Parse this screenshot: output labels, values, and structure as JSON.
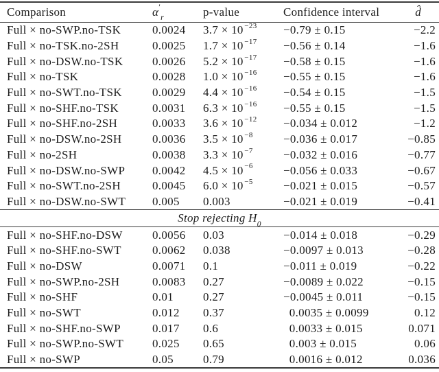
{
  "table": {
    "header": {
      "comparison": "Comparison",
      "alpha_base": "α",
      "alpha_prime": "′",
      "alpha_sub": "r",
      "p_value": "p-value",
      "confidence_interval": "Confidence interval",
      "d_hat": "d̂"
    },
    "section_divider": {
      "text": "Stop rejecting H",
      "sub": "0"
    },
    "rows_rejecting": [
      {
        "comparison": "Full × no-SWP.no-TSK",
        "alpha": "0.0024",
        "p": "3.7 × 10",
        "p_exp": "−23",
        "ci": "−0.79 ± 0.15",
        "d": "−2.2"
      },
      {
        "comparison": "Full × no-TSK.no-2SH",
        "alpha": "0.0025",
        "p": "1.7 × 10",
        "p_exp": "−17",
        "ci": "−0.56 ± 0.14",
        "d": "−1.6"
      },
      {
        "comparison": "Full × no-DSW.no-TSK",
        "alpha": "0.0026",
        "p": "5.2 × 10",
        "p_exp": "−17",
        "ci": "−0.58 ± 0.15",
        "d": "−1.6"
      },
      {
        "comparison": "Full × no-TSK",
        "alpha": "0.0028",
        "p": "1.0 × 10",
        "p_exp": "−16",
        "ci": "−0.55 ± 0.15",
        "d": "−1.6"
      },
      {
        "comparison": "Full × no-SWT.no-TSK",
        "alpha": "0.0029",
        "p": "4.4 × 10",
        "p_exp": "−16",
        "ci": "−0.54 ± 0.15",
        "d": "−1.5"
      },
      {
        "comparison": "Full × no-SHF.no-TSK",
        "alpha": "0.0031",
        "p": "6.3 × 10",
        "p_exp": "−16",
        "ci": "−0.55 ± 0.15",
        "d": "−1.5"
      },
      {
        "comparison": "Full × no-SHF.no-2SH",
        "alpha": "0.0033",
        "p": "3.6 × 10",
        "p_exp": "−12",
        "ci": "−0.034 ± 0.012",
        "d": "−1.2"
      },
      {
        "comparison": "Full × no-DSW.no-2SH",
        "alpha": "0.0036",
        "p": "3.5 × 10",
        "p_exp": "−8",
        "ci": "−0.036 ± 0.017",
        "d": "−0.85"
      },
      {
        "comparison": "Full × no-2SH",
        "alpha": "0.0038",
        "p": "3.3 × 10",
        "p_exp": "−7",
        "ci": "−0.032 ± 0.016",
        "d": "−0.77"
      },
      {
        "comparison": "Full × no-DSW.no-SWP",
        "alpha": "0.0042",
        "p": "4.5 × 10",
        "p_exp": "−6",
        "ci": "−0.056 ± 0.033",
        "d": "−0.67"
      },
      {
        "comparison": "Full × no-SWT.no-2SH",
        "alpha": "0.0045",
        "p": "6.0 × 10",
        "p_exp": "−5",
        "ci": "−0.021 ± 0.015",
        "d": "−0.57"
      },
      {
        "comparison": "Full × no-DSW.no-SWT",
        "alpha": "0.005",
        "p": "0.003",
        "p_exp": "",
        "ci": "−0.021 ± 0.019",
        "d": "−0.41"
      }
    ],
    "rows_stop_rejecting": [
      {
        "comparison": "Full × no-SHF.no-DSW",
        "alpha": "0.0056",
        "p": "0.03",
        "p_exp": "",
        "ci": "−0.014 ± 0.018",
        "d": "−0.29"
      },
      {
        "comparison": "Full × no-SHF.no-SWT",
        "alpha": "0.0062",
        "p": "0.038",
        "p_exp": "",
        "ci": "−0.0097 ± 0.013",
        "d": "−0.28"
      },
      {
        "comparison": "Full × no-DSW",
        "alpha": "0.0071",
        "p": "0.1",
        "p_exp": "",
        "ci": "−0.011 ± 0.019",
        "d": "−0.22"
      },
      {
        "comparison": "Full × no-SWP.no-2SH",
        "alpha": "0.0083",
        "p": "0.27",
        "p_exp": "",
        "ci": "−0.0089 ± 0.022",
        "d": "−0.15"
      },
      {
        "comparison": "Full × no-SHF",
        "alpha": "0.01",
        "p": "0.27",
        "p_exp": "",
        "ci": "−0.0045 ± 0.011",
        "d": "−0.15"
      },
      {
        "comparison": "Full × no-SWT",
        "alpha": "0.012",
        "p": "0.37",
        "p_exp": "",
        "ci": " 0.0035 ± 0.0099",
        "d": "0.12"
      },
      {
        "comparison": "Full × no-SHF.no-SWP",
        "alpha": "0.017",
        "p": "0.6",
        "p_exp": "",
        "ci": " 0.0033 ± 0.015",
        "d": "0.071"
      },
      {
        "comparison": "Full × no-SWP.no-SWT",
        "alpha": "0.025",
        "p": "0.65",
        "p_exp": "",
        "ci": " 0.003 ± 0.015",
        "d": "0.06"
      },
      {
        "comparison": "Full × no-SWP",
        "alpha": "0.05",
        "p": "0.79",
        "p_exp": "",
        "ci": " 0.0016 ± 0.012",
        "d": "0.036"
      }
    ],
    "colors": {
      "text": "#1b1b1b",
      "rule": "#3a3a3a",
      "background": "#ffffff"
    }
  }
}
